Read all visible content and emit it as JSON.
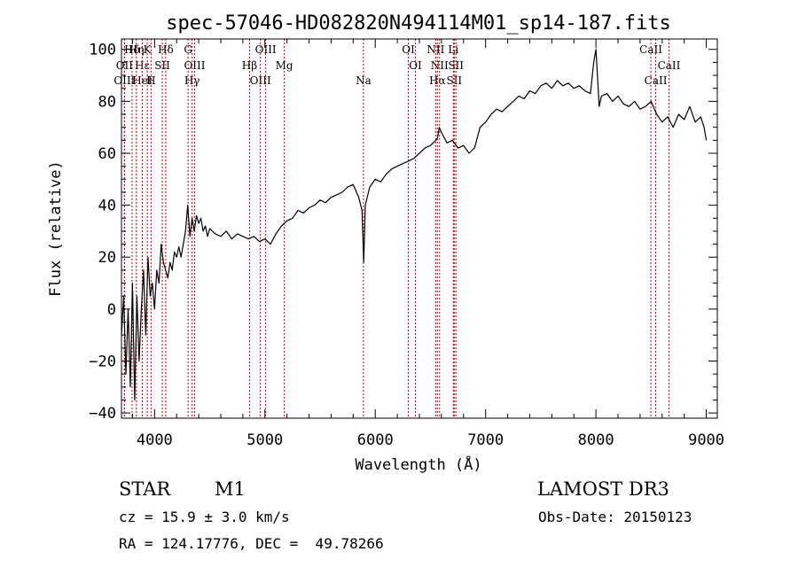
{
  "chart_data": {
    "type": "line",
    "title": "spec-57046-HD082820N494114M01_sp14-187.fits",
    "xlabel": "Wavelength (Å)",
    "ylabel": "Flux (relative)",
    "xlim": [
      3700,
      9100
    ],
    "ylim": [
      -42,
      104
    ],
    "xticks": [
      4000,
      5000,
      6000,
      7000,
      8000,
      9000
    ],
    "yticks": [
      -40,
      -20,
      0,
      20,
      40,
      60,
      80,
      100
    ],
    "grid": false,
    "legend": "none",
    "line_color": "#000000",
    "marker_color": "#cc0000",
    "series": [
      {
        "x": [
          3700,
          3720,
          3740,
          3760,
          3780,
          3800,
          3820,
          3840,
          3860,
          3880,
          3900,
          3920,
          3940,
          3960,
          3980,
          4000,
          4020,
          4040,
          4060,
          4080,
          4100,
          4120,
          4140,
          4160,
          4180,
          4200,
          4220,
          4240,
          4260,
          4280,
          4300,
          4320,
          4340,
          4360,
          4380,
          4400,
          4420,
          4440,
          4460,
          4480,
          4500,
          4550,
          4600,
          4650,
          4700,
          4750,
          4800,
          4850,
          4900,
          4950,
          5000,
          5050,
          5100,
          5150,
          5200,
          5250,
          5300,
          5350,
          5400,
          5450,
          5500,
          5550,
          5600,
          5650,
          5700,
          5750,
          5800,
          5850,
          5880,
          5895,
          5910,
          5950,
          6000,
          6050,
          6100,
          6150,
          6200,
          6250,
          6300,
          6350,
          6400,
          6450,
          6500,
          6550,
          6565,
          6580,
          6600,
          6650,
          6700,
          6750,
          6800,
          6850,
          6900,
          6950,
          7000,
          7050,
          7100,
          7150,
          7200,
          7250,
          7300,
          7350,
          7400,
          7450,
          7500,
          7550,
          7600,
          7650,
          7700,
          7750,
          7800,
          7850,
          7900,
          7950,
          7980,
          8000,
          8030,
          8050,
          8100,
          8150,
          8200,
          8250,
          8300,
          8350,
          8400,
          8450,
          8500,
          8550,
          8600,
          8650,
          8700,
          8750,
          8800,
          8850,
          8900,
          8950,
          8980,
          9000
        ],
        "y": [
          -10,
          5,
          -25,
          0,
          -30,
          10,
          -35,
          5,
          -20,
          0,
          15,
          -10,
          20,
          5,
          10,
          0,
          15,
          10,
          25,
          18,
          15,
          12,
          18,
          15,
          22,
          20,
          24,
          20,
          25,
          30,
          40,
          28,
          35,
          30,
          36,
          33,
          35,
          30,
          32,
          28,
          31,
          29,
          28,
          30,
          27,
          29,
          28,
          27,
          28,
          26,
          27,
          25,
          29,
          32,
          34,
          35,
          38,
          37,
          39,
          40,
          42,
          41,
          43,
          44,
          45,
          47,
          48,
          43,
          38,
          18,
          40,
          47,
          50,
          49,
          52,
          54,
          55,
          56,
          57,
          58,
          60,
          62,
          63,
          65,
          66,
          70,
          68,
          64,
          65,
          62,
          63,
          60,
          62,
          70,
          72,
          75,
          77,
          76,
          78,
          80,
          82,
          81,
          84,
          83,
          86,
          87,
          85,
          88,
          86,
          87,
          85,
          86,
          84,
          83,
          95,
          100,
          78,
          82,
          83,
          80,
          82,
          79,
          78,
          80,
          77,
          78,
          80,
          75,
          72,
          74,
          70,
          75,
          73,
          78,
          72,
          74,
          70,
          65
        ]
      }
    ],
    "spectral_lines": [
      {
        "label": "Hδ",
        "x": 3796
      },
      {
        "label": "OII",
        "x": 3727
      },
      {
        "label": "OIII",
        "x": 3727
      },
      {
        "label": "K",
        "x": 3934
      },
      {
        "label": "Hε",
        "x": 3889
      },
      {
        "label": "HeI",
        "x": 3888
      },
      {
        "label": "Hη",
        "x": 3835
      },
      {
        "label": "SII",
        "x": 4070
      },
      {
        "label": "H",
        "x": 3968
      },
      {
        "label": "Hδ",
        "x": 4101
      },
      {
        "label": "OIII",
        "x": 4363
      },
      {
        "label": "Hγ",
        "x": 4340
      },
      {
        "label": "G",
        "x": 4304
      },
      {
        "label": "Hβ",
        "x": 4861
      },
      {
        "label": "OIII",
        "x": 4959
      },
      {
        "label": "OIII",
        "x": 5007
      },
      {
        "label": "Mg",
        "x": 5175
      },
      {
        "label": "Na",
        "x": 5893
      },
      {
        "label": "OI",
        "x": 6300
      },
      {
        "label": "OI",
        "x": 6364
      },
      {
        "label": "Hα",
        "x": 6563
      },
      {
        "label": "NII",
        "x": 6548
      },
      {
        "label": "NII",
        "x": 6583
      },
      {
        "label": "SII",
        "x": 6716
      },
      {
        "label": "Li",
        "x": 6708
      },
      {
        "label": "SII",
        "x": 6731
      },
      {
        "label": "CaII",
        "x": 8542
      },
      {
        "label": "CaII",
        "x": 8498
      },
      {
        "label": "CaII",
        "x": 8662
      }
    ]
  },
  "info": {
    "object_class": "STAR",
    "subclass": "M1",
    "survey": "LAMOST DR3",
    "redshift": "cz = 15.9 ± 3.0 km/s",
    "obs_date": "Obs-Date: 20150123",
    "coords": "RA = 124.17776, DEC =  49.78266"
  }
}
